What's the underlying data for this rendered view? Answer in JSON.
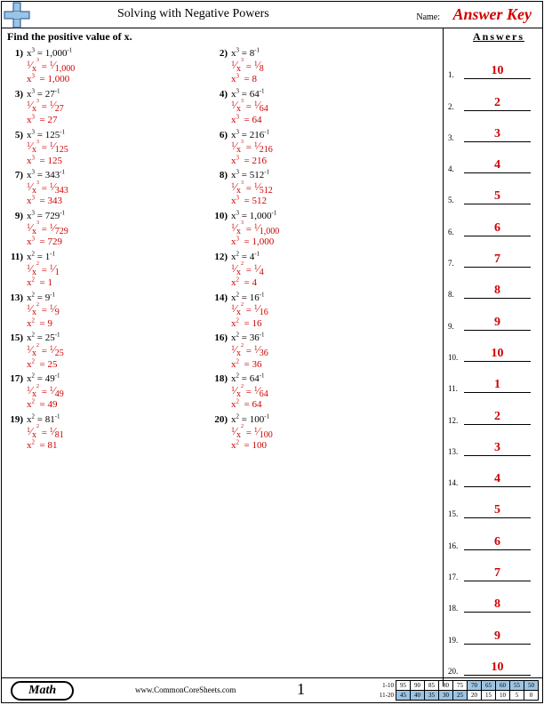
{
  "header": {
    "title": "Solving with Negative Powers",
    "name_label": "Name:",
    "answer_key": "Answer Key"
  },
  "instruction": "Find the positive value of x.",
  "answers_heading": "Answers",
  "problems": [
    {
      "n": "1",
      "exp": "3",
      "rhs": "1,000",
      "den": "1,000",
      "cube": "1,000"
    },
    {
      "n": "2",
      "exp": "3",
      "rhs": "8",
      "den": "8",
      "cube": "8"
    },
    {
      "n": "3",
      "exp": "3",
      "rhs": "27",
      "den": "27",
      "cube": "27"
    },
    {
      "n": "4",
      "exp": "3",
      "rhs": "64",
      "den": "64",
      "cube": "64"
    },
    {
      "n": "5",
      "exp": "3",
      "rhs": "125",
      "den": "125",
      "cube": "125"
    },
    {
      "n": "6",
      "exp": "3",
      "rhs": "216",
      "den": "216",
      "cube": "216"
    },
    {
      "n": "7",
      "exp": "3",
      "rhs": "343",
      "den": "343",
      "cube": "343"
    },
    {
      "n": "8",
      "exp": "3",
      "rhs": "512",
      "den": "512",
      "cube": "512"
    },
    {
      "n": "9",
      "exp": "3",
      "rhs": "729",
      "den": "729",
      "cube": "729"
    },
    {
      "n": "10",
      "exp": "3",
      "rhs": "1,000",
      "den": "1,000",
      "cube": "1,000"
    },
    {
      "n": "11",
      "exp": "2",
      "rhs": "1",
      "den": "1",
      "cube": "1"
    },
    {
      "n": "12",
      "exp": "2",
      "rhs": "4",
      "den": "4",
      "cube": "4"
    },
    {
      "n": "13",
      "exp": "2",
      "rhs": "9",
      "den": "9",
      "cube": "9"
    },
    {
      "n": "14",
      "exp": "2",
      "rhs": "16",
      "den": "16",
      "cube": "16"
    },
    {
      "n": "15",
      "exp": "2",
      "rhs": "25",
      "den": "25",
      "cube": "25"
    },
    {
      "n": "16",
      "exp": "2",
      "rhs": "36",
      "den": "36",
      "cube": "36"
    },
    {
      "n": "17",
      "exp": "2",
      "rhs": "49",
      "den": "49",
      "cube": "49"
    },
    {
      "n": "18",
      "exp": "2",
      "rhs": "64",
      "den": "64",
      "cube": "64"
    },
    {
      "n": "19",
      "exp": "2",
      "rhs": "81",
      "den": "81",
      "cube": "81"
    },
    {
      "n": "20",
      "exp": "2",
      "rhs": "100",
      "den": "100",
      "cube": "100"
    }
  ],
  "answers": [
    "10",
    "2",
    "3",
    "4",
    "5",
    "6",
    "7",
    "8",
    "9",
    "10",
    "1",
    "2",
    "3",
    "4",
    "5",
    "6",
    "7",
    "8",
    "9",
    "10"
  ],
  "footer": {
    "subject": "Math",
    "site": "www.CommonCoreSheets.com",
    "page": "1",
    "scoring": {
      "row1_label": "1-10",
      "row2_label": "11-20",
      "row1": [
        "95",
        "90",
        "85",
        "80",
        "75",
        "70",
        "65",
        "60",
        "55",
        "50"
      ],
      "row2": [
        "45",
        "40",
        "35",
        "30",
        "25",
        "20",
        "15",
        "10",
        "5",
        "0"
      ],
      "shaded_count": 5
    }
  },
  "colors": {
    "red": "#d00000",
    "blue": "#9cc4e4",
    "border": "#000000",
    "bg": "#ffffff"
  }
}
